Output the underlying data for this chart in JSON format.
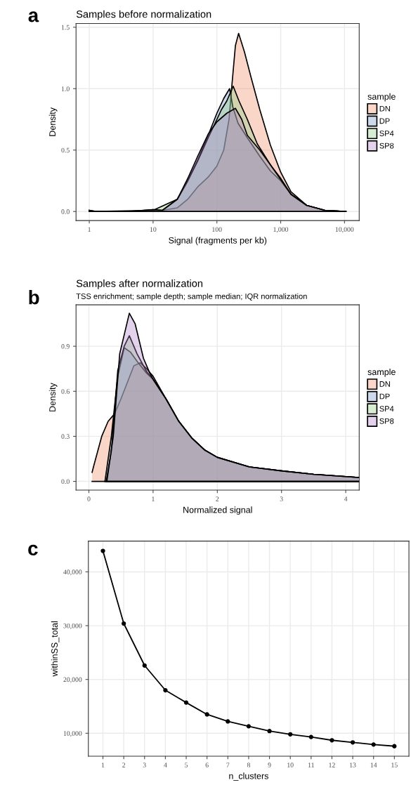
{
  "chart_data": [
    {
      "type": "area",
      "title": "Samples before normalization",
      "xlabel": "Signal (fragments per kb)",
      "ylabel": "Density",
      "legend_title": "sample",
      "legend": "right",
      "grid": true,
      "log": "x",
      "annotations": [
        "a"
      ],
      "xlim": [
        0.62,
        17000
      ],
      "ylim": [
        -0.074,
        1.53
      ],
      "xticks": [
        1,
        10,
        100,
        {
          "value": 1000,
          "label": "1,000"
        },
        {
          "value": 10000,
          "label": "10,000"
        }
      ],
      "yticks": [
        {
          "value": 0,
          "label": "0.0"
        },
        0.5,
        {
          "value": 1,
          "label": "1.0"
        },
        1.5
      ],
      "series": [
        {
          "name": "DN",
          "color": "#ee8a62",
          "x": [
            1,
            11,
            24,
            35,
            50,
            73,
            100,
            128,
            155,
            170,
            195,
            219,
            270,
            340,
            470,
            690,
            1000,
            1450,
            2550,
            4900,
            10500
          ],
          "values": [
            0,
            0,
            0.03,
            0.1,
            0.2,
            0.28,
            0.37,
            0.5,
            0.75,
            1.0,
            1.35,
            1.45,
            1.3,
            1.1,
            0.83,
            0.54,
            0.32,
            0.16,
            0.05,
            0.01,
            0
          ]
        },
        {
          "name": "DP",
          "color": "#6f94c8",
          "x": [
            1,
            1.3,
            4,
            10,
            14,
            24,
            35,
            50,
            73,
            100,
            128,
            158,
            178,
            214,
            300,
            470,
            690,
            1000,
            1450,
            2550,
            4900,
            10500
          ],
          "values": [
            0.01,
            0,
            0,
            0.015,
            0.01,
            0.1,
            0.25,
            0.42,
            0.62,
            0.8,
            0.92,
            1.0,
            0.85,
            0.72,
            0.6,
            0.45,
            0.33,
            0.25,
            0.14,
            0.05,
            0.01,
            0
          ]
        },
        {
          "name": "SP4",
          "color": "#8ccc7e",
          "x": [
            1,
            10,
            24,
            35,
            50,
            73,
            100,
            118,
            143,
            180,
            222,
            300,
            430,
            690,
            1000,
            1450,
            2550,
            4900,
            10500
          ],
          "values": [
            0,
            0.01,
            0.1,
            0.25,
            0.41,
            0.6,
            0.75,
            0.83,
            0.9,
            1.02,
            0.9,
            0.75,
            0.55,
            0.38,
            0.27,
            0.14,
            0.05,
            0.01,
            0
          ]
        },
        {
          "name": "SP8",
          "color": "#b07fc8",
          "x": [
            1,
            1.3,
            4,
            10,
            14,
            24,
            35,
            50,
            73,
            100,
            143,
            195,
            245,
            300,
            470,
            690,
            1000,
            1450,
            2550,
            4900,
            10500
          ],
          "values": [
            0.01,
            0,
            0,
            0.015,
            0.01,
            0.1,
            0.27,
            0.45,
            0.63,
            0.73,
            0.8,
            0.84,
            0.75,
            0.62,
            0.5,
            0.38,
            0.26,
            0.14,
            0.05,
            0.01,
            0
          ]
        }
      ]
    },
    {
      "type": "area",
      "title": "Samples after normalization",
      "subtitle": "TSS enrichment; sample depth; sample median; IQR normalization",
      "xlabel": "Normalized signal",
      "ylabel": "Density",
      "legend_title": "sample",
      "legend": "right",
      "grid": true,
      "annotations": [
        "b"
      ],
      "xlim": [
        -0.2,
        4.21
      ],
      "ylim": [
        -0.058,
        1.176
      ],
      "xticks": [
        0,
        1,
        2,
        3,
        4
      ],
      "yticks": [
        {
          "value": 0,
          "label": "0.0"
        },
        0.3,
        0.6,
        0.9
      ],
      "series": [
        {
          "name": "DN",
          "color": "#ee8a62",
          "x": [
            0.05,
            0.08,
            0.2,
            0.3,
            0.4,
            0.5,
            0.7,
            0.8,
            0.9,
            1.0,
            1.2,
            1.4,
            1.6,
            1.8,
            2.0,
            2.5,
            3.0,
            3.5,
            4.2
          ],
          "values": [
            0.06,
            0.11,
            0.3,
            0.4,
            0.45,
            0.55,
            0.77,
            0.79,
            0.75,
            0.7,
            0.55,
            0.4,
            0.29,
            0.21,
            0.16,
            0.096,
            0.07,
            0.047,
            0.026
          ]
        },
        {
          "name": "DP",
          "color": "#6f94c8",
          "x": [
            0.25,
            0.35,
            0.45,
            0.55,
            0.65,
            0.75,
            0.9,
            1.0,
            1.2,
            1.4,
            1.6,
            1.8,
            2.0,
            2.5,
            3.0,
            3.5,
            4.2
          ],
          "values": [
            0,
            0.3,
            0.7,
            0.89,
            0.86,
            0.8,
            0.72,
            0.68,
            0.55,
            0.4,
            0.29,
            0.21,
            0.16,
            0.096,
            0.07,
            0.047,
            0.026
          ]
        },
        {
          "name": "SP4",
          "color": "#8ccc7e",
          "x": [
            0.27,
            0.35,
            0.45,
            0.55,
            0.63,
            0.75,
            0.9,
            1.0,
            1.2,
            1.4,
            1.6,
            1.8,
            2.0,
            2.5,
            3.0,
            3.5,
            4.2
          ],
          "values": [
            0,
            0.2,
            0.74,
            0.9,
            0.97,
            0.85,
            0.73,
            0.68,
            0.55,
            0.4,
            0.29,
            0.21,
            0.16,
            0.096,
            0.07,
            0.047,
            0.026
          ]
        },
        {
          "name": "SP8",
          "color": "#b07fc8",
          "x": [
            0.28,
            0.38,
            0.48,
            0.63,
            0.72,
            0.85,
            0.95,
            1.0,
            1.2,
            1.4,
            1.6,
            1.8,
            2.0,
            2.5,
            3.0,
            3.5,
            4.2
          ],
          "values": [
            0,
            0.3,
            0.85,
            1.12,
            1.05,
            0.82,
            0.72,
            0.68,
            0.55,
            0.4,
            0.29,
            0.21,
            0.16,
            0.096,
            0.07,
            0.047,
            0.026
          ]
        }
      ]
    },
    {
      "type": "line",
      "xlabel": "n_clusters",
      "ylabel": "withinSS_total",
      "grid": true,
      "marker": "circle",
      "annotations": [
        "c"
      ],
      "xlim": [
        0.3,
        15.7
      ],
      "ylim": [
        5735,
        45720
      ],
      "xticks": [
        1,
        2,
        3,
        4,
        5,
        6,
        7,
        8,
        9,
        10,
        11,
        12,
        13,
        14,
        15
      ],
      "yticks": [
        {
          "value": 10000,
          "label": "10,000"
        },
        {
          "value": 20000,
          "label": "20,000"
        },
        {
          "value": 30000,
          "label": "30,000"
        },
        {
          "value": 40000,
          "label": "40,000"
        }
      ],
      "x": [
        1,
        2,
        3,
        4,
        5,
        6,
        7,
        8,
        9,
        10,
        11,
        12,
        13,
        14,
        15
      ],
      "values": [
        43900,
        30400,
        22600,
        18000,
        15700,
        13500,
        12200,
        11300,
        10400,
        9800,
        9300,
        8700,
        8300,
        7900,
        7600
      ],
      "color": "#000000"
    }
  ]
}
